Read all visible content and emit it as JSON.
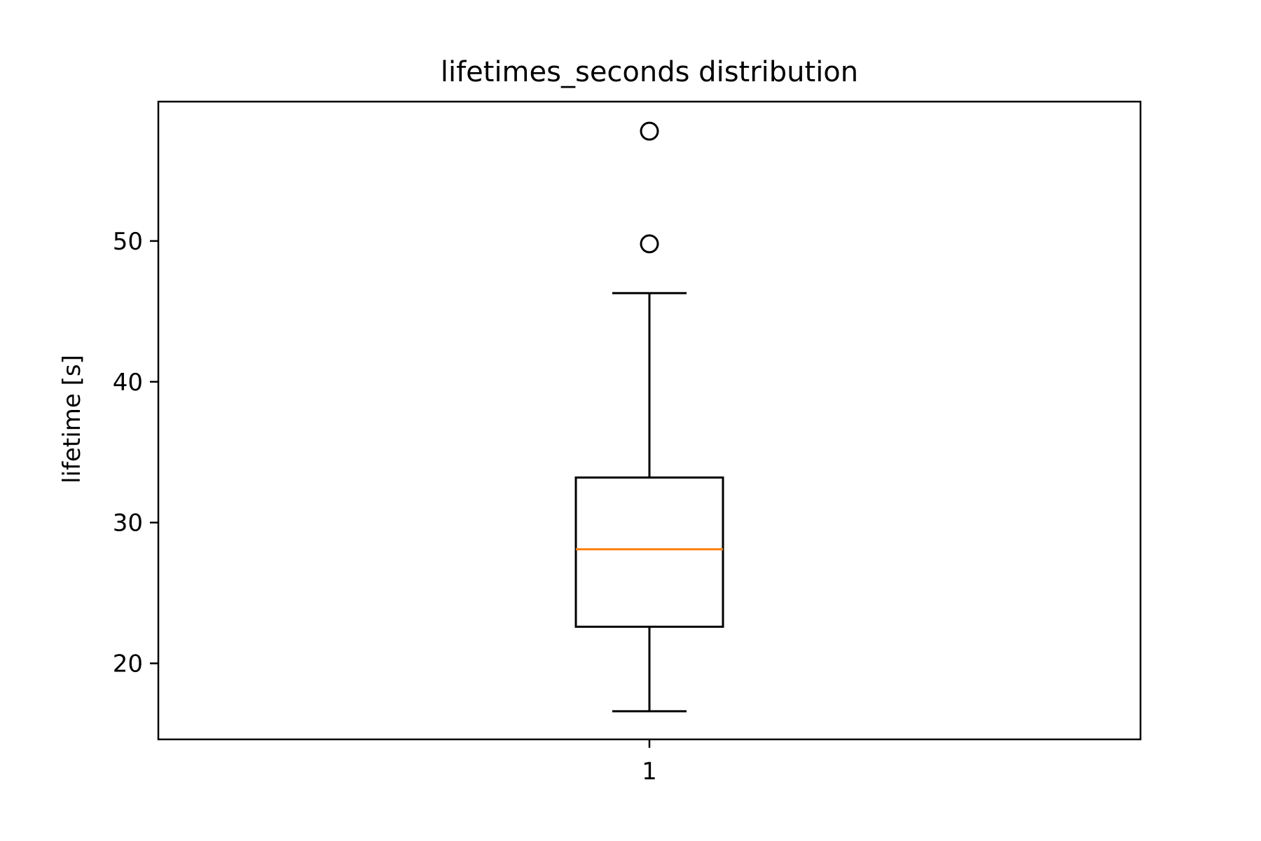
{
  "chart_data": {
    "type": "box",
    "title": "lifetimes_seconds distribution",
    "xlabel": "",
    "ylabel": "lifetime [s]",
    "categories": [
      "1"
    ],
    "yticks": [
      20,
      30,
      40,
      50
    ],
    "ylim": [
      14.6,
      59.9
    ],
    "grid": false,
    "boxes": [
      {
        "category": "1",
        "whisker_low": 16.6,
        "q1": 22.6,
        "median": 28.1,
        "q3": 33.2,
        "whisker_high": 46.3,
        "outliers": [
          49.8,
          57.8
        ]
      }
    ],
    "colors": {
      "box": "#000000",
      "median": "#ff7f0e",
      "outlier": "#000000"
    }
  }
}
